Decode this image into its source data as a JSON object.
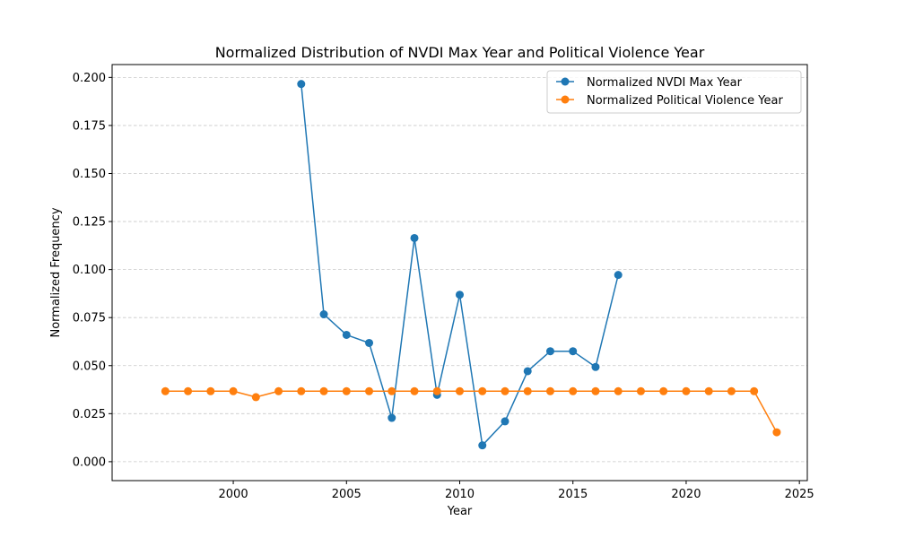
{
  "chart_data": {
    "type": "line",
    "title": "Normalized Distribution of NVDI Max Year and Political Violence Year",
    "xlabel": "Year",
    "ylabel": "Normalized Frequency",
    "xlim": [
      1994.65,
      2025.35
    ],
    "ylim": [
      -0.00985,
      0.2067
    ],
    "xticks": [
      2000,
      2005,
      2010,
      2015,
      2020,
      2025
    ],
    "yticks": [
      0.0,
      0.025,
      0.05,
      0.075,
      0.1,
      0.125,
      0.15,
      0.175,
      0.2
    ],
    "xtick_labels": [
      "2000",
      "2005",
      "2010",
      "2015",
      "2020",
      "2025"
    ],
    "ytick_labels": [
      "0.000",
      "0.025",
      "0.050",
      "0.075",
      "0.100",
      "0.125",
      "0.150",
      "0.175",
      "0.200"
    ],
    "grid": "y-dashed",
    "legend_position": "top-right",
    "series": [
      {
        "name": "Normalized NVDI Max Year",
        "color": "#1f77b4",
        "x": [
          2003,
          2004,
          2005,
          2006,
          2007,
          2008,
          2009,
          2010,
          2011,
          2012,
          2013,
          2014,
          2015,
          2016,
          2017
        ],
        "y": [
          0.1966,
          0.0767,
          0.066,
          0.0618,
          0.0228,
          0.1164,
          0.0348,
          0.0869,
          0.0085,
          0.021,
          0.0471,
          0.0575,
          0.0575,
          0.0493,
          0.0972
        ]
      },
      {
        "name": "Normalized Political Violence Year",
        "color": "#ff7f0e",
        "x": [
          1997,
          1998,
          1999,
          2000,
          2001,
          2002,
          2003,
          2004,
          2005,
          2006,
          2007,
          2008,
          2009,
          2010,
          2011,
          2012,
          2013,
          2014,
          2015,
          2016,
          2017,
          2018,
          2019,
          2020,
          2021,
          2022,
          2023,
          2024
        ],
        "y": [
          0.0367,
          0.0367,
          0.0367,
          0.0367,
          0.0336,
          0.0367,
          0.0367,
          0.0367,
          0.0367,
          0.0367,
          0.0367,
          0.0367,
          0.0367,
          0.0367,
          0.0367,
          0.0367,
          0.0367,
          0.0367,
          0.0367,
          0.0367,
          0.0367,
          0.0367,
          0.0367,
          0.0367,
          0.0367,
          0.0367,
          0.0367,
          0.0153
        ]
      }
    ]
  }
}
